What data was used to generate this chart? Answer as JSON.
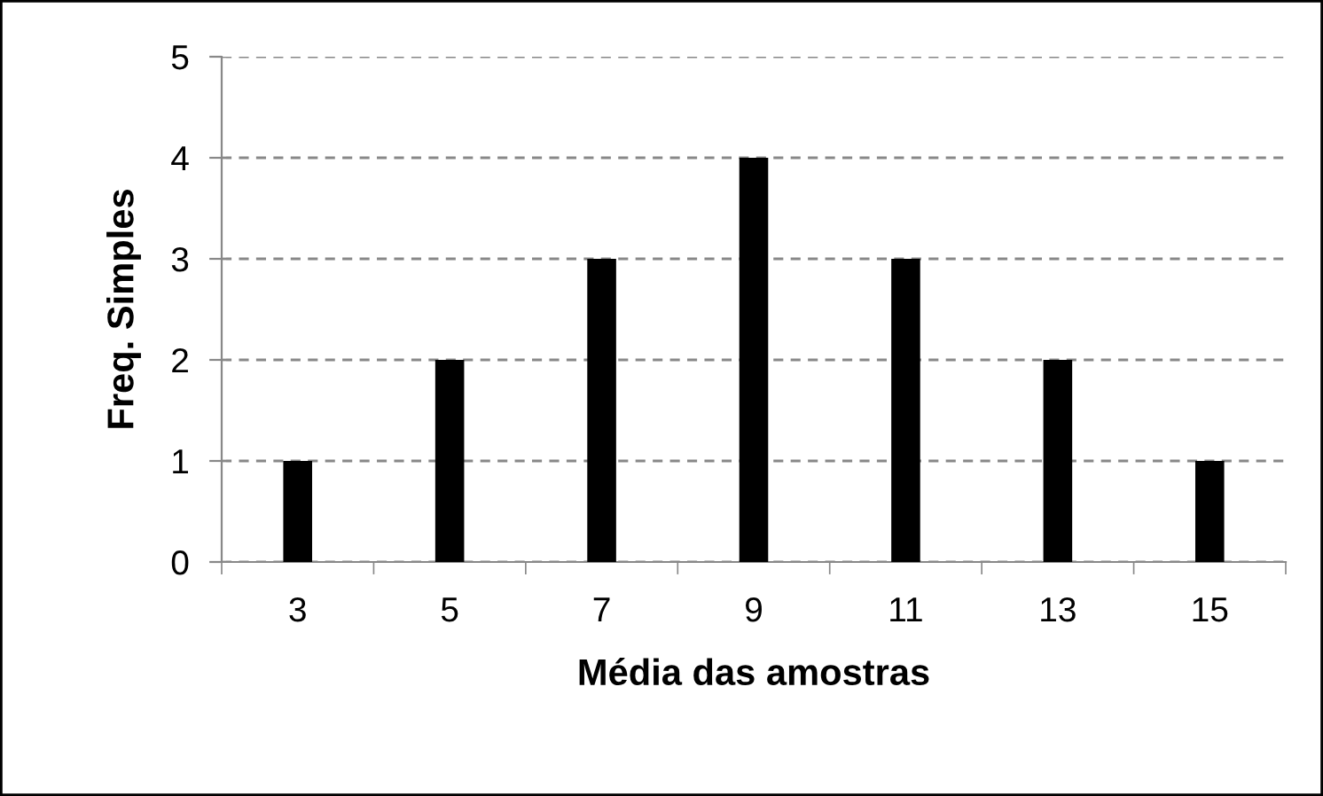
{
  "chart_data": {
    "type": "bar",
    "xlabel": "Média das amostras",
    "ylabel": "Freq. Simples",
    "categories": [
      "3",
      "5",
      "7",
      "9",
      "11",
      "13",
      "15"
    ],
    "values": [
      1,
      2,
      3,
      4,
      3,
      2,
      1
    ],
    "color": "#000000",
    "ylim": [
      0,
      5
    ],
    "yticks": [
      0,
      1,
      2,
      3,
      4,
      5
    ],
    "grid": "y"
  }
}
